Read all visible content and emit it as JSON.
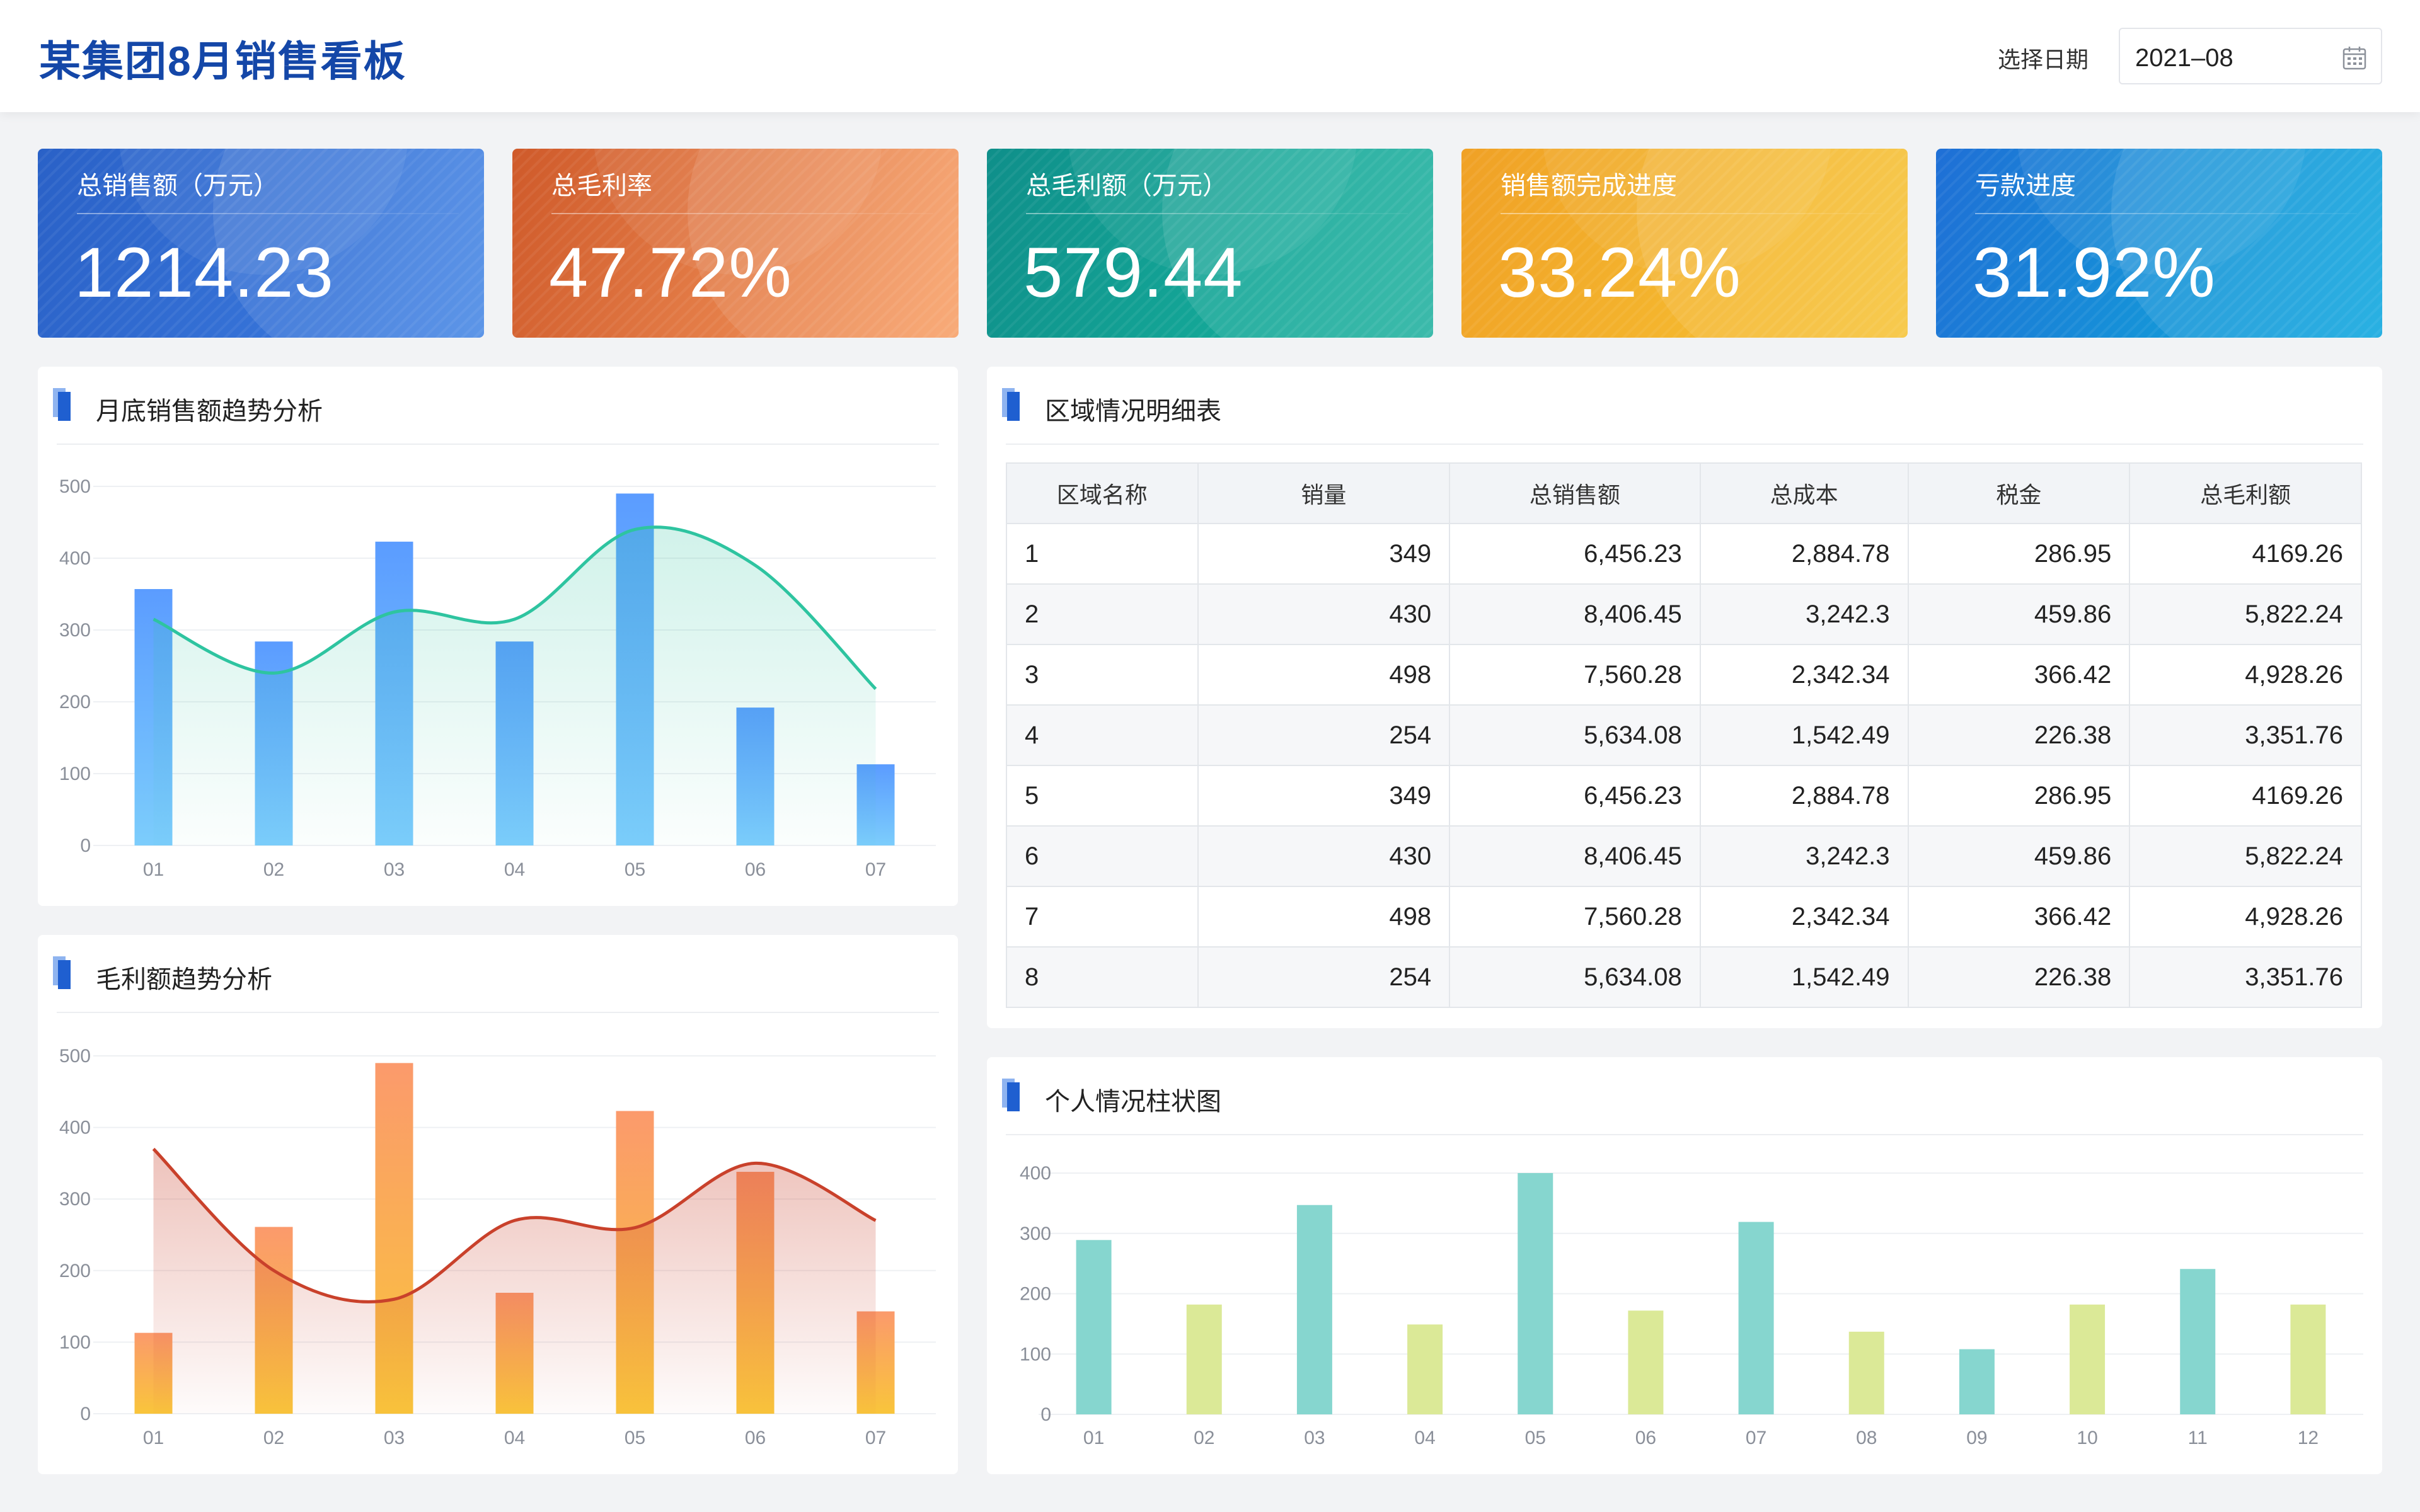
{
  "header": {
    "title": "某集团8月销售看板",
    "date_label": "选择日期",
    "date_value": "2021–08",
    "calendar_icon": "calendar-icon"
  },
  "kpis": [
    {
      "label": "总销售额（万元）",
      "value": "1214.23"
    },
    {
      "label": "总毛利率",
      "value": "47.72%"
    },
    {
      "label": "总毛利额（万元）",
      "value": "579.44"
    },
    {
      "label": "销售额完成进度",
      "value": "33.24%"
    },
    {
      "label": "亏款进度",
      "value": "31.92%"
    }
  ],
  "panels": {
    "sales_title": "月底销售额趋势分析",
    "gross_title": "毛利额趋势分析",
    "table_title": "区域情况明细表",
    "person_title": "个人情况柱状图",
    "title_icon": "book-icon"
  },
  "table": {
    "columns": [
      "区域名称",
      "销量",
      "总销售额",
      "总成本",
      "税金",
      "总毛利额"
    ],
    "rows": [
      [
        "1",
        "349",
        "6,456.23",
        "2,884.78",
        "286.95",
        "4169.26"
      ],
      [
        "2",
        "430",
        "8,406.45",
        "3,242.3",
        "459.86",
        "5,822.24"
      ],
      [
        "3",
        "498",
        "7,560.28",
        "2,342.34",
        "366.42",
        "4,928.26"
      ],
      [
        "4",
        "254",
        "5,634.08",
        "1,542.49",
        "226.38",
        "3,351.76"
      ],
      [
        "5",
        "349",
        "6,456.23",
        "2,884.78",
        "286.95",
        "4169.26"
      ],
      [
        "6",
        "430",
        "8,406.45",
        "3,242.3",
        "459.86",
        "5,822.24"
      ],
      [
        "7",
        "498",
        "7,560.28",
        "2,342.34",
        "366.42",
        "4,928.26"
      ],
      [
        "8",
        "254",
        "5,634.08",
        "1,542.49",
        "226.38",
        "3,351.76"
      ]
    ]
  },
  "colors": {
    "title_blue": "#1447a8",
    "sales_bar_top": "#5b9cff",
    "sales_bar_bottom": "#7ccdfc",
    "sales_line": "#2ec4a0",
    "gross_bar_top": "#fb9a6c",
    "gross_bar_bottom": "#f9c53b",
    "gross_line": "#c9412b",
    "person_teal": "#86d6cf",
    "person_lime": "#dbe997"
  },
  "chart_data": [
    {
      "id": "sales",
      "type": "bar",
      "categories": [
        "01",
        "02",
        "03",
        "04",
        "05",
        "06",
        "07"
      ],
      "series": [
        {
          "type": "bar",
          "values": [
            357,
            284,
            423,
            284,
            490,
            192,
            113
          ]
        },
        {
          "type": "line",
          "values": [
            315,
            240,
            325,
            315,
            440,
            390,
            218
          ]
        }
      ],
      "ylim": [
        0,
        500
      ],
      "yticks": [
        0,
        100,
        200,
        300,
        400,
        500
      ],
      "grid": true
    },
    {
      "id": "gross",
      "type": "bar",
      "categories": [
        "01",
        "02",
        "03",
        "04",
        "05",
        "06",
        "07"
      ],
      "series": [
        {
          "type": "bar",
          "values": [
            113,
            261,
            490,
            169,
            423,
            338,
            143
          ]
        },
        {
          "type": "line",
          "values": [
            370,
            200,
            160,
            270,
            260,
            350,
            270
          ]
        }
      ],
      "ylim": [
        0,
        500
      ],
      "yticks": [
        0,
        100,
        200,
        300,
        400,
        500
      ],
      "grid": true
    },
    {
      "id": "person",
      "type": "bar",
      "categories": [
        "01",
        "02",
        "03",
        "04",
        "05",
        "06",
        "07",
        "08",
        "09",
        "10",
        "11",
        "12"
      ],
      "series": [
        {
          "type": "bar",
          "values": [
            289,
            182,
            347,
            149,
            400,
            172,
            319,
            137,
            108,
            182,
            241,
            182
          ]
        }
      ],
      "ylim": [
        0,
        400
      ],
      "yticks": [
        0,
        100,
        200,
        300,
        400
      ],
      "grid": true
    }
  ]
}
